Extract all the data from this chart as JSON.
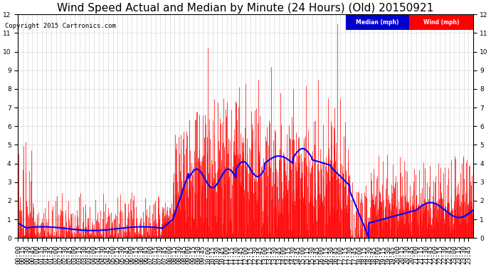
{
  "title": "Wind Speed Actual and Median by Minute (24 Hours) (Old) 20150921",
  "copyright": "Copyright 2015 Cartronics.com",
  "ylim": [
    0.0,
    12.0
  ],
  "yticks": [
    0.0,
    1.0,
    2.0,
    3.0,
    4.0,
    5.0,
    6.0,
    7.0,
    8.0,
    9.0,
    10.0,
    11.0,
    12.0
  ],
  "wind_color": "#ff0000",
  "median_color": "#0000ff",
  "background_color": "#ffffff",
  "legend_median_bg": "#0000cc",
  "legend_wind_bg": "#ff0000",
  "title_fontsize": 11,
  "tick_fontsize": 6.5,
  "n_minutes": 1440
}
